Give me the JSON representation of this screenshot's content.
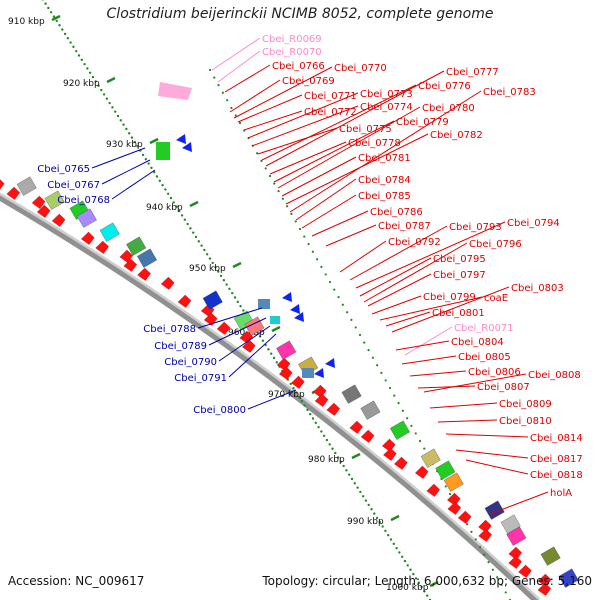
{
  "title": "Clostridium beijerinckii NCIMB 8052, complete genome",
  "accession": "Accession: NC_009617",
  "summary": "Topology: circular; Length: 6,000,632 bp; Genes: 5,160",
  "colors": {
    "backbone": "#909090",
    "ticks": "#228822",
    "plus_label": "#0000aa",
    "minus_label": "#dd0000",
    "rna_label": "#ff88cc",
    "gene_red": "#ff1111"
  },
  "kbp_ticks": [
    "910 kbp",
    "920 kbp",
    "930 kbp",
    "940 kbp",
    "950 kbp",
    "960 kbp",
    "970 kbp",
    "980 kbp",
    "990 kbp",
    "1000 kbp"
  ],
  "plus_labels": [
    "Cbei_0765",
    "Cbei_0767",
    "Cbei_0768",
    "Cbei_0788",
    "Cbei_0789",
    "Cbei_0790",
    "Cbei_0791",
    "Cbei_0800"
  ],
  "rna_labels": [
    "Cbei_R0069",
    "Cbei_R0070",
    "Cbei_R0071"
  ],
  "minus_labels": [
    "Cbei_0766",
    "Cbei_0769",
    "Cbei_0770",
    "Cbei_0771",
    "Cbei_0772",
    "Cbei_0773",
    "Cbei_0774",
    "Cbei_0775",
    "Cbei_0776",
    "Cbei_0777",
    "Cbei_0778",
    "Cbei_0779",
    "Cbei_0780",
    "Cbei_0781",
    "Cbei_0782",
    "Cbei_0783",
    "Cbei_0784",
    "Cbei_0785",
    "Cbei_0786",
    "Cbei_0787",
    "Cbei_0792",
    "Cbei_0793",
    "Cbei_0794",
    "Cbei_0795",
    "Cbei_0796",
    "Cbei_0797",
    "Cbei_0799",
    "coaE",
    "Cbei_0801",
    "Cbei_0803",
    "Cbei_0804",
    "Cbei_0805",
    "Cbei_0806",
    "Cbei_0807",
    "Cbei_0808",
    "Cbei_0809",
    "Cbei_0810",
    "Cbei_0814",
    "Cbei_0817",
    "Cbei_0818",
    "holA"
  ]
}
